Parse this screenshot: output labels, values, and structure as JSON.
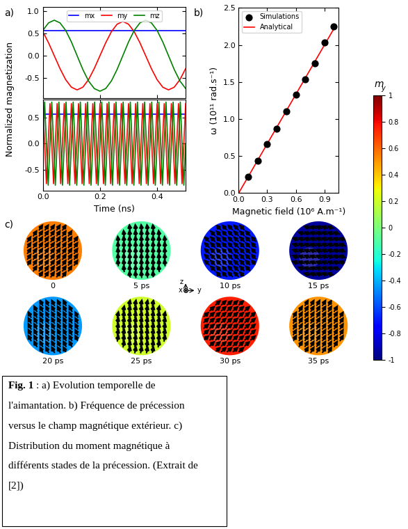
{
  "chart_data": [
    {
      "panel_label": "a)",
      "type": "line",
      "series": [
        {
          "name": "mx",
          "color": "blue",
          "x": [
            0,
            0.5
          ],
          "values": [
            0.57,
            0.57
          ]
        },
        {
          "name": "my",
          "color": "red",
          "x": [
            0,
            0.02,
            0.04,
            0.06,
            0.08,
            0.1,
            0.12,
            0.14,
            0.16,
            0.18,
            0.2,
            0.22,
            0.24,
            0.26,
            0.28,
            0.3,
            0.32,
            0.34,
            0.36,
            0.38,
            0.4,
            0.42,
            0.44,
            0.46,
            0.48,
            0.5
          ],
          "values": [
            0.54,
            0.29,
            0,
            -0.29,
            -0.54,
            -0.71,
            -0.77,
            -0.71,
            -0.54,
            -0.29,
            0,
            0.29,
            0.54,
            0.71,
            0.77,
            0.71,
            0.54,
            0.29,
            0,
            -0.29,
            -0.54,
            -0.71,
            -0.77,
            -0.71,
            -0.54,
            -0.29
          ]
        },
        {
          "name": "mz",
          "color": "green",
          "x": [
            0,
            0.02,
            0.04,
            0.06,
            0.08,
            0.1,
            0.12,
            0.14,
            0.16,
            0.18,
            0.2,
            0.22,
            0.24,
            0.26,
            0.28,
            0.3,
            0.32,
            0.34,
            0.36,
            0.38,
            0.4,
            0.42,
            0.44,
            0.46,
            0.48,
            0.5
          ],
          "values": [
            0.57,
            0.74,
            0.8,
            0.74,
            0.57,
            0.31,
            0,
            -0.31,
            -0.57,
            -0.74,
            -0.8,
            -0.74,
            -0.57,
            -0.31,
            0,
            0.31,
            0.57,
            0.74,
            0.8,
            0.74,
            0.57,
            0.31,
            0,
            -0.31,
            -0.57,
            -0.74
          ]
        }
      ],
      "xlim": [
        0,
        0.5
      ],
      "xticks": [
        {
          "value": 0,
          "label": "0.0"
        },
        0.2,
        0.4
      ],
      "ylim": [
        -0.95,
        1.1
      ],
      "yticks": [
        -0.5,
        {
          "value": 0,
          "label": "0.0"
        },
        0.5,
        {
          "value": 1,
          "label": "1.0"
        }
      ],
      "tick_labels": "y",
      "legend": "upper center"
    },
    {
      "type": "line",
      "xlabel": "Time (ns)",
      "ylabel": "Normalized magnetization",
      "series": [
        {
          "name": "mx",
          "color": "blue",
          "x": [
            0,
            0.5
          ],
          "values": [
            0.57,
            0.57
          ]
        },
        {
          "name": "my",
          "color": "red",
          "x": [
            0,
            0.00625,
            0.0125,
            0.01875,
            0.025,
            0.03125,
            0.0375,
            0.04375,
            0.05,
            0.05625,
            0.0625,
            0.06875,
            0.075,
            0.08125,
            0.0875,
            0.09375,
            0.1,
            0.10625,
            0.1125,
            0.11875,
            0.125,
            0.13125,
            0.1375,
            0.14375,
            0.15,
            0.15625,
            0.1625,
            0.16875,
            0.175,
            0.18125,
            0.1875,
            0.19375,
            0.2,
            0.20625,
            0.2125,
            0.21875,
            0.225,
            0.23125,
            0.2375,
            0.24375,
            0.25,
            0.25625,
            0.2625,
            0.26875,
            0.275,
            0.28125,
            0.2875,
            0.29375,
            0.3,
            0.30625,
            0.3125,
            0.31875,
            0.325,
            0.33125,
            0.3375,
            0.34375,
            0.35,
            0.35625,
            0.3625,
            0.36875,
            0.375,
            0.38125,
            0.3875,
            0.39375,
            0.4,
            0.40625,
            0.4125,
            0.41875,
            0.425,
            0.43125,
            0.4375,
            0.44375,
            0.45,
            0.45625,
            0.4625,
            0.46875,
            0.475,
            0.48125,
            0.4875,
            0.49375,
            0.5
          ],
          "values": [
            0.77,
            0,
            -0.77,
            0,
            0.77,
            0,
            -0.77,
            0,
            0.77,
            0,
            -0.77,
            0,
            0.77,
            0,
            -0.77,
            0,
            0.77,
            0,
            -0.77,
            0,
            0.77,
            0,
            -0.77,
            0,
            0.77,
            0,
            -0.77,
            0,
            0.77,
            0,
            -0.77,
            0,
            0.77,
            0,
            -0.77,
            0,
            0.77,
            0,
            -0.77,
            0,
            0.77,
            0,
            -0.77,
            0,
            0.77,
            0,
            -0.77,
            0,
            0.77,
            0,
            -0.77,
            0,
            0.77,
            0,
            -0.77,
            0,
            0.77,
            0,
            -0.77,
            0,
            0.77,
            0,
            -0.77,
            0,
            0.77,
            0,
            -0.77,
            0,
            0.77,
            0,
            -0.77,
            0,
            0.77,
            0,
            -0.77,
            0,
            0.77,
            0,
            -0.77,
            0,
            0.77
          ]
        },
        {
          "name": "mz",
          "color": "green",
          "x": [
            0,
            0.00625,
            0.0125,
            0.01875,
            0.025,
            0.03125,
            0.0375,
            0.04375,
            0.05,
            0.05625,
            0.0625,
            0.06875,
            0.075,
            0.08125,
            0.0875,
            0.09375,
            0.1,
            0.10625,
            0.1125,
            0.11875,
            0.125,
            0.13125,
            0.1375,
            0.14375,
            0.15,
            0.15625,
            0.1625,
            0.16875,
            0.175,
            0.18125,
            0.1875,
            0.19375,
            0.2,
            0.20625,
            0.2125,
            0.21875,
            0.225,
            0.23125,
            0.2375,
            0.24375,
            0.25,
            0.25625,
            0.2625,
            0.26875,
            0.275,
            0.28125,
            0.2875,
            0.29375,
            0.3,
            0.30625,
            0.3125,
            0.31875,
            0.325,
            0.33125,
            0.3375,
            0.34375,
            0.35,
            0.35625,
            0.3625,
            0.36875,
            0.375,
            0.38125,
            0.3875,
            0.39375,
            0.4,
            0.40625,
            0.4125,
            0.41875,
            0.425,
            0.43125,
            0.4375,
            0.44375,
            0.45,
            0.45625,
            0.4625,
            0.46875,
            0.475,
            0.48125,
            0.4875,
            0.49375,
            0.5
          ],
          "values": [
            0,
            0.8,
            0,
            -0.8,
            0,
            0.8,
            0,
            -0.8,
            0,
            0.8,
            0,
            -0.8,
            0,
            0.8,
            0,
            -0.8,
            0,
            0.8,
            0,
            -0.8,
            0,
            0.8,
            0,
            -0.8,
            0,
            0.8,
            0,
            -0.8,
            0,
            0.8,
            0,
            -0.8,
            0,
            0.8,
            0,
            -0.8,
            0,
            0.8,
            0,
            -0.8,
            0,
            0.8,
            0,
            -0.8,
            0,
            0.8,
            0,
            -0.8,
            0,
            0.8,
            0,
            -0.8,
            0,
            0.8,
            0,
            -0.8,
            0,
            0.8,
            0,
            -0.8,
            0,
            0.8,
            0,
            -0.8,
            0,
            0.8,
            0,
            -0.8,
            0,
            0.8,
            0,
            -0.8,
            0,
            0.8,
            0,
            -0.8,
            0,
            0.8,
            0,
            -0.8,
            0
          ]
        }
      ],
      "xlim": [
        0,
        0.5
      ],
      "xticks": [
        {
          "value": 0,
          "label": "0.0"
        },
        0.2,
        0.4
      ],
      "ylim": [
        -0.9,
        0.85
      ],
      "yticks": [
        -0.5,
        {
          "value": 0,
          "label": "0.0"
        },
        0.5
      ]
    },
    {
      "panel_label": "b)",
      "type": "scatter",
      "xlabel": "Magnetic field (10⁶ A.m⁻¹)",
      "ylabel": "ω (10¹¹ rad.s⁻¹)",
      "series": [
        {
          "name": "Simulations",
          "type": "scatter",
          "color": "black",
          "marker": "o",
          "x": [
            0.1,
            0.2,
            0.3,
            0.4,
            0.5,
            0.6,
            0.7,
            0.8,
            0.9,
            1.0
          ],
          "values": [
            0.22,
            0.44,
            0.66,
            0.87,
            1.1,
            1.33,
            1.54,
            1.75,
            2.03,
            2.25
          ]
        },
        {
          "name": "Analytical",
          "type": "line",
          "color": "red",
          "x": [
            0,
            1.0
          ],
          "values": [
            0,
            2.22
          ]
        }
      ],
      "xlim": [
        0,
        1.05
      ],
      "xticks": [
        {
          "value": 0,
          "label": "0.0"
        },
        0.3,
        0.6,
        0.9
      ],
      "ylim": [
        0,
        2.5
      ],
      "yticks": [
        {
          "value": 0,
          "label": "0.0"
        },
        0.5,
        {
          "value": 1,
          "label": "1.0"
        },
        1.5,
        {
          "value": 2,
          "label": "2.0"
        },
        2.5
      ],
      "legend": "upper left"
    }
  ],
  "panel_c": {
    "label": "c)",
    "snapshots": [
      {
        "time": "0",
        "my": 0.55
      },
      {
        "time": "5 ps",
        "my": -0.1
      },
      {
        "time": "10 ps",
        "my": -0.7
      },
      {
        "time": "15 ps",
        "my": -0.95
      },
      {
        "time": "20 ps",
        "my": -0.45
      },
      {
        "time": "25 ps",
        "my": 0.2
      },
      {
        "time": "30 ps",
        "my": 0.75
      },
      {
        "time": "35 ps",
        "my": 0.5
      }
    ],
    "axes_labels": {
      "z": "z",
      "x": "x",
      "y": "y"
    },
    "colorbar": {
      "label": {
        "symbol": "m",
        "subscript": "y"
      },
      "range": [
        -1,
        1
      ],
      "ticks": [
        -1,
        -0.8,
        -0.6,
        -0.4,
        -0.2,
        0,
        0.2,
        0.4,
        0.6,
        0.8,
        1
      ]
    }
  },
  "caption": {
    "label": "Fig. 1",
    "lines": [
      ": a) Evolution temporelle de",
      "l'aimantation. b) Fréquence de précession",
      "versus le champ magnétique extérieur. c)",
      "Distribution du moment magnétique à",
      "différents stades de la précession. (Extrait de",
      "[2])"
    ]
  }
}
